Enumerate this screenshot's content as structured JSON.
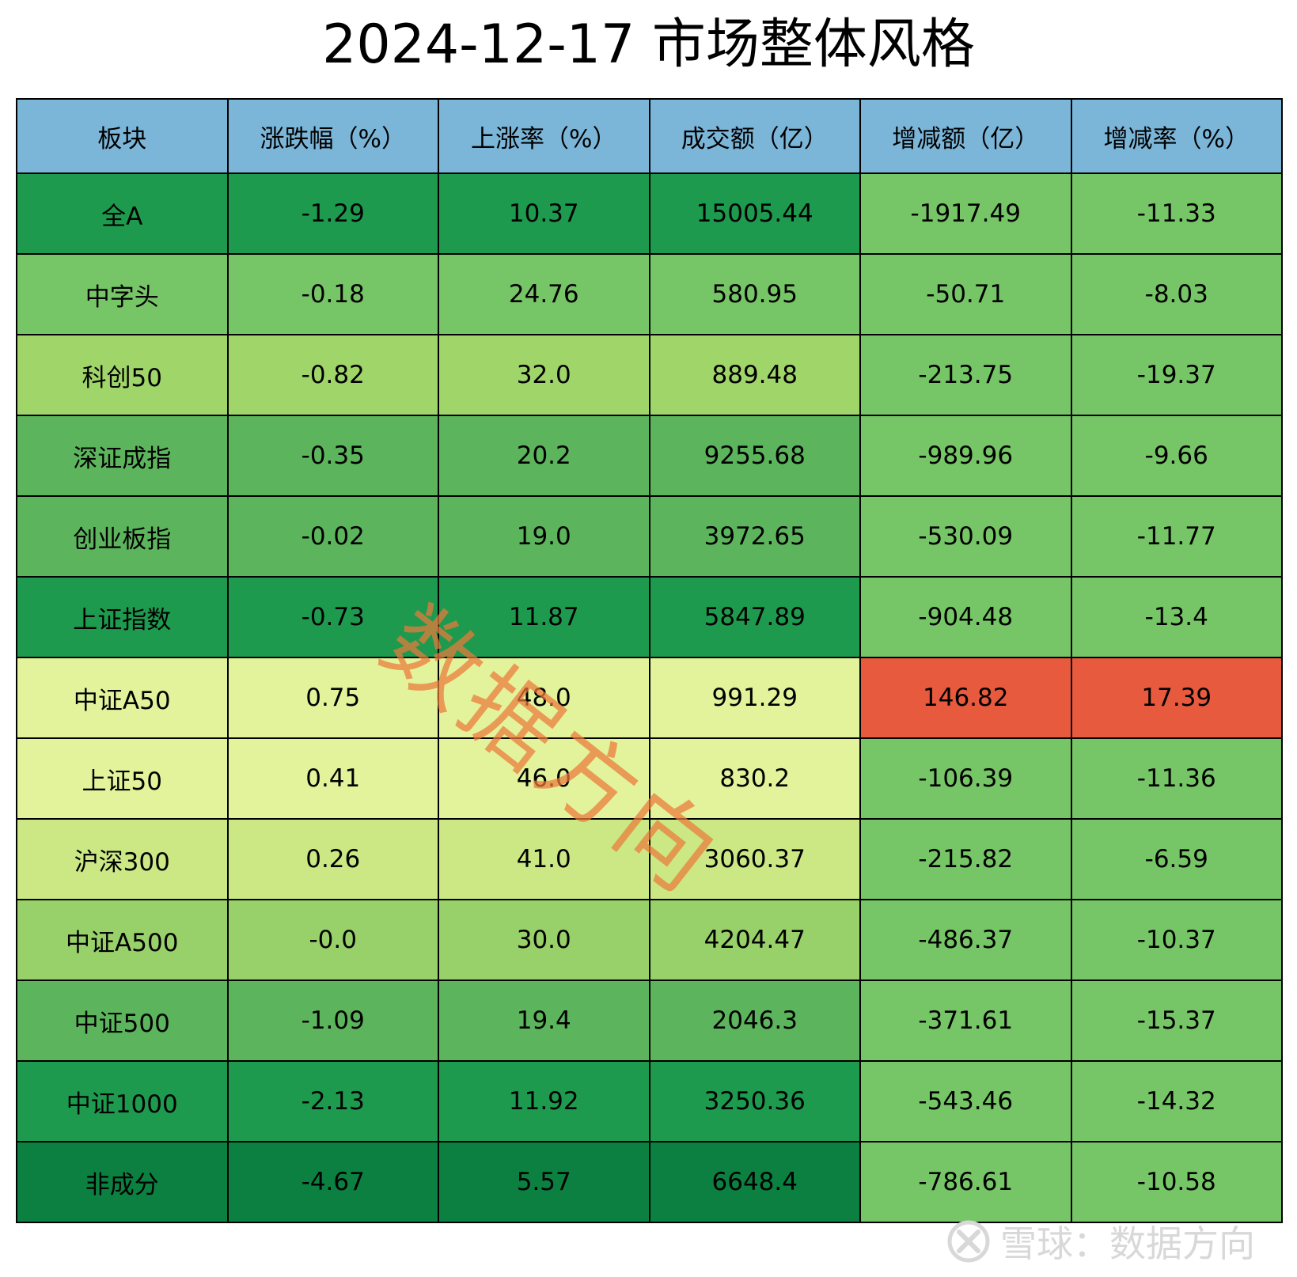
{
  "title": "2024-12-17 市场整体风格",
  "watermark": "数据方向",
  "brand": {
    "text": "雪球：数据方向",
    "icon": "snowball-logo-icon"
  },
  "chart_data": {
    "type": "table",
    "title": "2024-12-17 市场整体风格",
    "columns": [
      "板块",
      "涨跌幅（%）",
      "上涨率（%）",
      "成交额（亿）",
      "增减额（亿）",
      "增减率（%）"
    ],
    "header_color": "#7bb6d9",
    "rows": [
      [
        "全A",
        "-1.29",
        "10.37",
        "15005.44",
        "-1917.49",
        "-11.33"
      ],
      [
        "中字头",
        "-0.18",
        "24.76",
        "580.95",
        "-50.71",
        "-8.03"
      ],
      [
        "科创50",
        "-0.82",
        "32.0",
        "889.48",
        "-213.75",
        "-19.37"
      ],
      [
        "深证成指",
        "-0.35",
        "20.2",
        "9255.68",
        "-989.96",
        "-9.66"
      ],
      [
        "创业板指",
        "-0.02",
        "19.0",
        "3972.65",
        "-530.09",
        "-11.77"
      ],
      [
        "上证指数",
        "-0.73",
        "11.87",
        "5847.89",
        "-904.48",
        "-13.4"
      ],
      [
        "中证A50",
        "0.75",
        "48.0",
        "991.29",
        "146.82",
        "17.39"
      ],
      [
        "上证50",
        "0.41",
        "46.0",
        "830.2",
        "-106.39",
        "-11.36"
      ],
      [
        "沪深300",
        "0.26",
        "41.0",
        "3060.37",
        "-215.82",
        "-6.59"
      ],
      [
        "中证A500",
        "-0.0",
        "30.0",
        "4204.47",
        "-486.37",
        "-10.37"
      ],
      [
        "中证500",
        "-1.09",
        "19.4",
        "2046.3",
        "-371.61",
        "-15.37"
      ],
      [
        "中证1000",
        "-2.13",
        "11.92",
        "3250.36",
        "-543.46",
        "-14.32"
      ],
      [
        "非成分",
        "-4.67",
        "5.57",
        "6648.4",
        "-786.61",
        "-10.58"
      ]
    ],
    "row_colors": [
      "#1e9a4e",
      "#76c566",
      "#a0d56a",
      "#5cb55c",
      "#5cb55c",
      "#1e9a4e",
      "#e3f39b",
      "#e3f39b",
      "#cbe885",
      "#98d06a",
      "#5cb55c",
      "#1e9a4e",
      "#0c8040"
    ],
    "change_colors": [
      "#76c566",
      "#76c566",
      "#76c566",
      "#76c566",
      "#76c566",
      "#76c566",
      "#e85a3e",
      "#76c566",
      "#76c566",
      "#76c566",
      "#76c566",
      "#76c566",
      "#76c566"
    ]
  }
}
